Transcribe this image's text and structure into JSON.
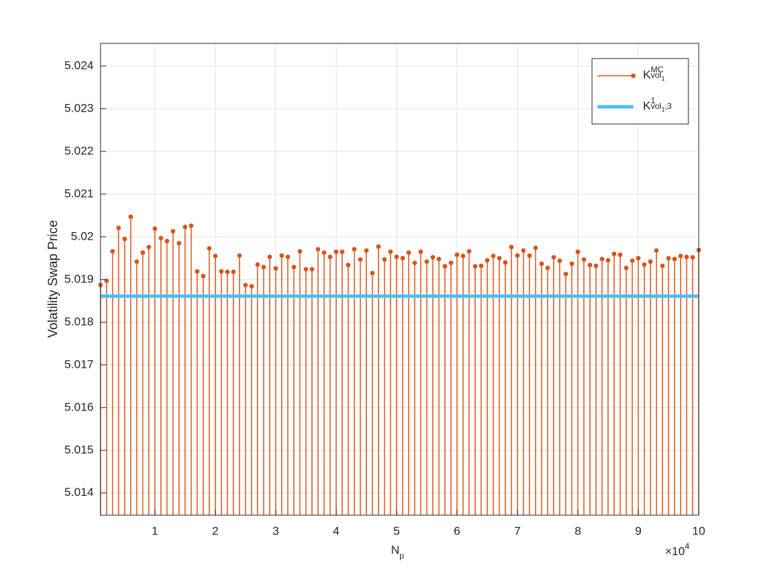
{
  "chart_data": {
    "type": "stem",
    "x_label": {
      "main": "N",
      "sub": "p"
    },
    "x_exponent": {
      "main": "×10",
      "sup": "4"
    },
    "y_label": "Volatility Swap Price",
    "xlim": [
      1000,
      100000
    ],
    "xticks": [
      {
        "value": 10000,
        "label": "1"
      },
      {
        "value": 20000,
        "label": "2"
      },
      {
        "value": 30000,
        "label": "3"
      },
      {
        "value": 40000,
        "label": "4"
      },
      {
        "value": 50000,
        "label": "5"
      },
      {
        "value": 60000,
        "label": "6"
      },
      {
        "value": 70000,
        "label": "7"
      },
      {
        "value": 80000,
        "label": "8"
      },
      {
        "value": 90000,
        "label": "9"
      },
      {
        "value": 100000,
        "label": "10"
      }
    ],
    "ylim": [
      5.01348,
      5.02453
    ],
    "yticks": [
      5.014,
      5.015,
      5.016,
      5.017,
      5.018,
      5.019,
      5.02,
      5.021,
      5.022,
      5.023,
      5.024
    ],
    "grid": true,
    "legend": "top-right",
    "series": [
      {
        "name": {
          "main": "K",
          "sup": "MC",
          "sub": "vol",
          "subsub": "1"
        },
        "color": "#D95319",
        "style": "stem",
        "x": [
          1000,
          2000,
          3000,
          4000,
          5000,
          6000,
          7000,
          8000,
          9000,
          10000,
          11000,
          12000,
          13000,
          14000,
          15000,
          16000,
          17000,
          18000,
          19000,
          20000,
          21000,
          22000,
          23000,
          24000,
          25000,
          26000,
          27000,
          28000,
          29000,
          30000,
          31000,
          32000,
          33000,
          34000,
          35000,
          36000,
          37000,
          38000,
          39000,
          40000,
          41000,
          42000,
          43000,
          44000,
          45000,
          46000,
          47000,
          48000,
          49000,
          50000,
          51000,
          52000,
          53000,
          54000,
          55000,
          56000,
          57000,
          58000,
          59000,
          60000,
          61000,
          62000,
          63000,
          64000,
          65000,
          66000,
          67000,
          68000,
          69000,
          70000,
          71000,
          72000,
          73000,
          74000,
          75000,
          76000,
          77000,
          78000,
          79000,
          80000,
          81000,
          82000,
          83000,
          84000,
          85000,
          86000,
          87000,
          88000,
          89000,
          90000,
          91000,
          92000,
          93000,
          94000,
          95000,
          96000,
          97000,
          98000,
          99000,
          100000
        ],
        "values": [
          5.01887,
          5.01897,
          5.01966,
          5.02021,
          5.01995,
          5.02047,
          5.01942,
          5.01963,
          5.01976,
          5.02019,
          5.01997,
          5.0199,
          5.02013,
          5.01985,
          5.02023,
          5.02026,
          5.01919,
          5.01908,
          5.01973,
          5.01955,
          5.01919,
          5.01918,
          5.01918,
          5.01956,
          5.01887,
          5.01884,
          5.01935,
          5.01929,
          5.01953,
          5.01926,
          5.01956,
          5.01953,
          5.01929,
          5.01966,
          5.01924,
          5.01924,
          5.01971,
          5.01963,
          5.01953,
          5.01965,
          5.01965,
          5.01934,
          5.01971,
          5.01947,
          5.01968,
          5.01915,
          5.01977,
          5.01947,
          5.01965,
          5.01953,
          5.0195,
          5.01963,
          5.01939,
          5.01965,
          5.01942,
          5.01952,
          5.01948,
          5.01931,
          5.01939,
          5.01958,
          5.01955,
          5.01966,
          5.01931,
          5.01932,
          5.01945,
          5.01955,
          5.0195,
          5.0194,
          5.01976,
          5.01956,
          5.01968,
          5.01956,
          5.01974,
          5.01937,
          5.01927,
          5.01952,
          5.01944,
          5.01913,
          5.01937,
          5.01965,
          5.01947,
          5.01934,
          5.01932,
          5.01948,
          5.01945,
          5.0196,
          5.01958,
          5.01927,
          5.01944,
          5.0195,
          5.01935,
          5.01942,
          5.01968,
          5.01932,
          5.0195,
          5.01948,
          5.01955,
          5.01953,
          5.01952,
          5.01969
        ]
      },
      {
        "name": {
          "main": "K",
          "sup": "1",
          "sub": "vol",
          "subsub": "1",
          "sub2": ",3"
        },
        "color": "#4DBEEE",
        "style": "line",
        "x": [
          1000,
          100000
        ],
        "values": [
          5.01861,
          5.01861
        ]
      }
    ]
  }
}
